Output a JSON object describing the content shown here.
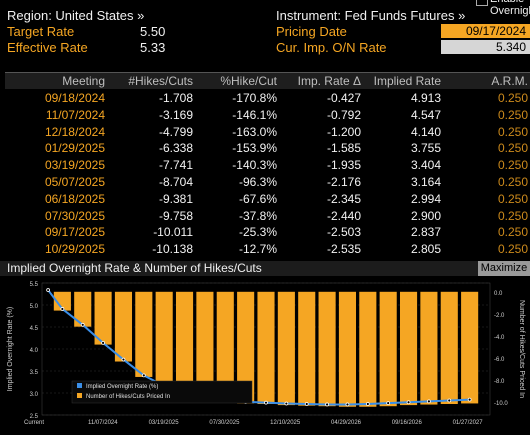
{
  "top": {
    "region": "Region: United States »",
    "instrument": "Instrument: Fed Funds Futures »",
    "enable_override": "Enable Overnight",
    "target_rate_label": "Target Rate",
    "target_rate_value": "5.50",
    "effective_rate_label": "Effective Rate",
    "effective_rate_value": "5.33",
    "pricing_date_label": "Pricing Date",
    "pricing_date_value": "09/17/2024",
    "cur_imp_label": "Cur. Imp. O/N Rate",
    "cur_imp_value": "5.340"
  },
  "table": {
    "headers": [
      "Meeting",
      "#Hikes/Cuts",
      "%Hike/Cut",
      "Imp. Rate Δ",
      "Implied Rate",
      "A.R.M."
    ],
    "rows": [
      [
        "09/18/2024",
        "-1.708",
        "-170.8%",
        "-0.427",
        "4.913",
        "0.250"
      ],
      [
        "11/07/2024",
        "-3.169",
        "-146.1%",
        "-0.792",
        "4.547",
        "0.250"
      ],
      [
        "12/18/2024",
        "-4.799",
        "-163.0%",
        "-1.200",
        "4.140",
        "0.250"
      ],
      [
        "01/29/2025",
        "-6.338",
        "-153.9%",
        "-1.585",
        "3.755",
        "0.250"
      ],
      [
        "03/19/2025",
        "-7.741",
        "-140.3%",
        "-1.935",
        "3.404",
        "0.250"
      ],
      [
        "05/07/2025",
        "-8.704",
        "-96.3%",
        "-2.176",
        "3.164",
        "0.250"
      ],
      [
        "06/18/2025",
        "-9.381",
        "-67.6%",
        "-2.345",
        "2.994",
        "0.250"
      ],
      [
        "07/30/2025",
        "-9.758",
        "-37.8%",
        "-2.440",
        "2.900",
        "0.250"
      ],
      [
        "09/17/2025",
        "-10.011",
        "-25.3%",
        "-2.503",
        "2.837",
        "0.250"
      ],
      [
        "10/29/2025",
        "-10.138",
        "-12.7%",
        "-2.535",
        "2.805",
        "0.250"
      ]
    ]
  },
  "chart_header": {
    "title": "Implied Overnight Rate & Number of Hikes/Cuts",
    "maximize": "Maximize"
  },
  "chart_data": {
    "type": "bar",
    "title": "Implied Overnight Rate & Number of Hikes/Cuts",
    "ylabel_left": "Implied Overnight Rate (%)",
    "ylabel_right": "Number of Hikes/Cuts Priced In",
    "left_ticks": [
      "5.5",
      "5.0",
      "4.5",
      "4.0",
      "3.5",
      "3.0",
      "2.5"
    ],
    "right_ticks": [
      "0.0",
      "-2.0",
      "-4.0",
      "-6.0",
      "-8.0",
      "-10.0"
    ],
    "x_ticks": [
      "Current",
      "11/07/2024",
      "03/19/2025",
      "07/30/2025",
      "12/10/2025",
      "04/29/2026",
      "09/16/2026",
      "01/27/2027"
    ],
    "ylim_left": [
      2.5,
      5.5
    ],
    "ylim_right": [
      -11.2,
      0.8
    ],
    "bars": [
      -1.708,
      -3.169,
      -4.799,
      -6.338,
      -7.741,
      -8.704,
      -9.381,
      -9.758,
      -10.011,
      -10.138,
      -10.2,
      -10.3,
      -10.35,
      -10.4,
      -10.45,
      -10.45,
      -10.4,
      -10.3,
      -10.25,
      -10.2,
      -10.15
    ],
    "line": [
      5.34,
      4.91,
      4.55,
      4.14,
      3.76,
      3.4,
      3.16,
      2.99,
      2.9,
      2.84,
      2.8,
      2.78,
      2.76,
      2.75,
      2.74,
      2.74,
      2.75,
      2.77,
      2.79,
      2.81,
      2.83,
      2.85
    ],
    "legend": [
      {
        "name": "Implied Overnight Rate (%)",
        "color": "#3b8fe8"
      },
      {
        "name": "Number of Hikes/Cuts Priced In",
        "color": "#f5a623"
      }
    ]
  }
}
